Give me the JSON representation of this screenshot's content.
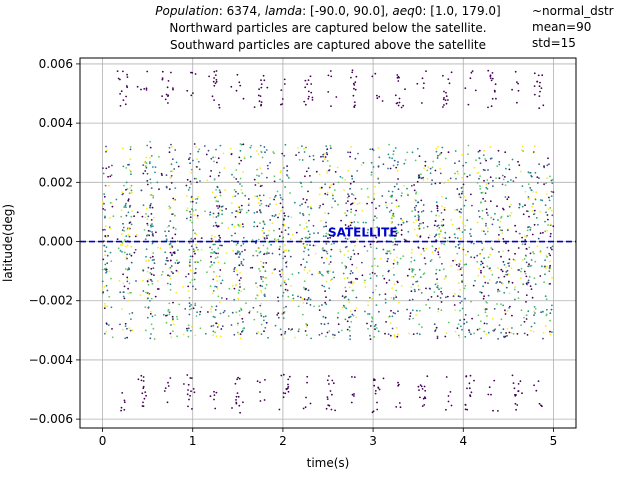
{
  "chart_data": {
    "type": "scatter",
    "title": {
      "line1": {
        "pop_label": "Population",
        "pop_value": ": 6374, ",
        "lamda_label": "lamda",
        "lamda_value": ": [-90.0, 90.0], ",
        "aeq_label": "aeq",
        "aeq_value": "0: [1.0, 179.0]"
      },
      "line2": "Northward particles are captured below the satellite.",
      "line3": "Southward particles are captured above the satellite"
    },
    "side_note": {
      "line1": "~normal_dstr",
      "line2": "mean=90",
      "line3": "std=15"
    },
    "xlabel": "time(s)",
    "ylabel": "latitude(deg)",
    "xlim": [
      -0.25,
      5.25
    ],
    "ylim": [
      -0.0063,
      0.0062
    ],
    "x_ticks": [
      0,
      1,
      2,
      3,
      4,
      5
    ],
    "x_tick_labels": [
      "0",
      "1",
      "2",
      "3",
      "4",
      "5"
    ],
    "y_ticks": [
      -0.006,
      -0.004,
      -0.002,
      0.0,
      0.002,
      0.004,
      0.006
    ],
    "y_tick_labels": [
      "−0.006",
      "−0.004",
      "−0.002",
      "0.000",
      "0.002",
      "0.004",
      "0.006"
    ],
    "grid": true,
    "colormap": "viridis",
    "colors": [
      "#440154",
      "#3b528b",
      "#21918c",
      "#5ec962",
      "#fde725"
    ],
    "satellite": {
      "latitude": 0.0,
      "label": "SATELLITE",
      "label_x": 2.5,
      "line_style": "dashed",
      "color": "#0000cc"
    },
    "bands": {
      "dense_band": [
        -0.0033,
        0.0033
      ],
      "high_aeq_outliers_abs_range": [
        0.0045,
        0.0058
      ],
      "outlier_columns_x_approx": [
        0.22,
        0.46,
        0.72,
        0.98,
        1.24,
        1.5,
        1.76,
        2.02,
        2.28,
        2.52,
        2.78,
        3.04,
        3.3,
        3.56,
        3.82,
        4.06,
        4.32,
        4.58,
        4.84
      ]
    }
  }
}
